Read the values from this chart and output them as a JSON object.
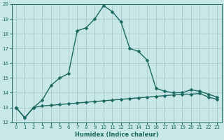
{
  "xlabel": "Humidex (Indice chaleur)",
  "ylabel": "",
  "xlim": [
    -0.5,
    23.5
  ],
  "ylim": [
    12,
    20
  ],
  "yticks": [
    12,
    13,
    14,
    15,
    16,
    17,
    18,
    19,
    20
  ],
  "xticks": [
    0,
    1,
    2,
    3,
    4,
    5,
    6,
    7,
    8,
    9,
    10,
    11,
    12,
    13,
    14,
    15,
    16,
    17,
    18,
    19,
    20,
    21,
    22,
    23
  ],
  "bg_color": "#c8e8e8",
  "grid_color": "#a8c8c8",
  "line_color": "#1a6860",
  "line1_x": [
    0,
    1,
    2,
    3,
    4,
    5,
    6,
    7,
    8,
    9,
    10,
    11,
    12,
    13,
    14,
    15,
    16,
    17,
    18,
    19,
    20,
    21,
    22,
    23
  ],
  "line1_y": [
    13.0,
    12.3,
    13.0,
    13.5,
    14.5,
    15.0,
    15.3,
    18.2,
    18.4,
    19.0,
    19.9,
    19.5,
    18.8,
    17.0,
    16.8,
    16.2,
    14.3,
    14.1,
    14.0,
    14.0,
    14.2,
    14.1,
    13.9,
    13.7
  ],
  "line2_x": [
    0,
    1,
    2,
    3,
    4,
    5,
    6,
    7,
    8,
    9,
    10,
    11,
    12,
    13,
    14,
    15,
    16,
    17,
    18,
    19,
    20,
    21,
    22,
    23
  ],
  "line2_y": [
    13.0,
    12.3,
    13.0,
    13.1,
    13.15,
    13.2,
    13.25,
    13.3,
    13.35,
    13.4,
    13.45,
    13.5,
    13.55,
    13.6,
    13.65,
    13.7,
    13.75,
    13.8,
    13.85,
    13.9,
    13.9,
    13.95,
    13.7,
    13.55
  ],
  "marker": "D",
  "markersize": 2.5,
  "linewidth": 1.0,
  "axis_fontsize": 6,
  "tick_fontsize": 5
}
